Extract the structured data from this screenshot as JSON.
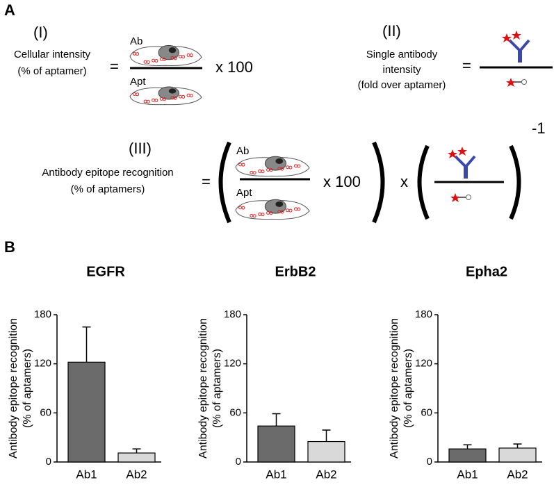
{
  "panel_labels": {
    "a": "A",
    "b": "B"
  },
  "panel_a": {
    "eq1": {
      "number": "(I)",
      "line1": "Cellular intensity",
      "line2": "(% of aptamer)",
      "equals": "=",
      "top": "Ab",
      "bottom": "Apt",
      "times": "x 100"
    },
    "eq2": {
      "number": "(II)",
      "line1": "Single antibody",
      "line2": "intensity",
      "line3": "(fold over aptamer)",
      "equals": "="
    },
    "eq3": {
      "number": "(III)",
      "line1": "Antibody epitope recognition",
      "line2": "(% of aptamers)",
      "equals": "=",
      "top": "Ab",
      "bottom": "Apt",
      "times": "x 100",
      "times2": "x",
      "exponent": "-1"
    }
  },
  "chart_data": [
    {
      "type": "bar",
      "title": "EGFR",
      "y_label": [
        "Antibody epitope recognition",
        "(% of aptamers)"
      ],
      "categories": [
        "Ab1",
        "Ab2"
      ],
      "values": [
        122,
        11
      ],
      "errors": [
        43,
        5
      ],
      "colors": [
        "#6b6b6b",
        "#d9d9d9"
      ],
      "ylim": [
        0,
        180
      ],
      "yticks": [
        0,
        60,
        120,
        180
      ]
    },
    {
      "type": "bar",
      "title": "ErbB2",
      "y_label": [
        "Antibody epitope recognition",
        "(% of aptamers)"
      ],
      "categories": [
        "Ab1",
        "Ab2"
      ],
      "values": [
        44,
        25
      ],
      "errors": [
        15,
        14
      ],
      "colors": [
        "#6b6b6b",
        "#d9d9d9"
      ],
      "ylim": [
        0,
        180
      ],
      "yticks": [
        0,
        60,
        120,
        180
      ]
    },
    {
      "type": "bar",
      "title": "Epha2",
      "y_label": [
        "Antibody epitope recognition",
        "(% of aptamers)"
      ],
      "categories": [
        "Ab1",
        "Ab2"
      ],
      "values": [
        16,
        17
      ],
      "errors": [
        5,
        5
      ],
      "colors": [
        "#6b6b6b",
        "#d9d9d9"
      ],
      "ylim": [
        0,
        180
      ],
      "yticks": [
        0,
        60,
        120,
        180
      ]
    }
  ]
}
